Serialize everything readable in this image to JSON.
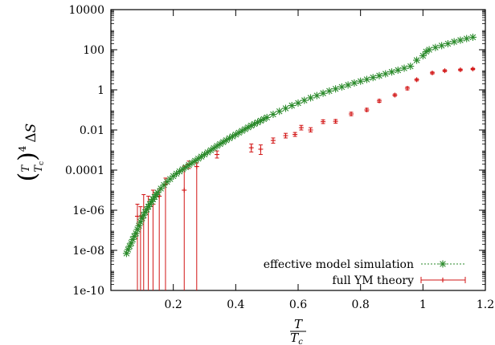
{
  "chart_data": {
    "type": "scatter",
    "xlabel": "T/Tc",
    "ylabel": "(T/Tc)^4 ΔS",
    "x_axis": {
      "min": 0.0,
      "max": 1.2,
      "ticks": [
        0.2,
        0.4,
        0.6,
        0.8,
        1.0,
        1.2
      ],
      "tick_labels": [
        "0.2",
        "0.4",
        "0.6",
        "0.8",
        "1",
        "1.2"
      ]
    },
    "y_axis": {
      "scale": "log",
      "min": 1e-10,
      "max": 10000,
      "ticks": [
        1e-10,
        1e-08,
        1e-06,
        0.0001,
        0.01,
        1,
        100,
        10000
      ],
      "tick_labels": [
        "1e-10",
        "1e-08",
        "1e-06",
        "0.0001",
        "0.01",
        "1",
        "100",
        "10000"
      ]
    },
    "legend_position": "bottom-right",
    "series": [
      {
        "name": "effective model simulation",
        "color": "#2a8a2a",
        "marker": "asterisk",
        "line": "dotted",
        "points": [
          [
            0.05,
            7e-09
          ],
          [
            0.055,
            1.1e-08
          ],
          [
            0.06,
            1.6e-08
          ],
          [
            0.065,
            2.3e-08
          ],
          [
            0.07,
            3.5e-08
          ],
          [
            0.075,
            5e-08
          ],
          [
            0.08,
            7e-08
          ],
          [
            0.085,
            1.1e-07
          ],
          [
            0.09,
            1.7e-07
          ],
          [
            0.095,
            2.6e-07
          ],
          [
            0.1,
            4e-07
          ],
          [
            0.105,
            5.7e-07
          ],
          [
            0.11,
            8e-07
          ],
          [
            0.115,
            1.1e-06
          ],
          [
            0.12,
            1.5e-06
          ],
          [
            0.125,
            2e-06
          ],
          [
            0.13,
            2.7e-06
          ],
          [
            0.135,
            3.5e-06
          ],
          [
            0.14,
            4.6e-06
          ],
          [
            0.145,
            6e-06
          ],
          [
            0.15,
            7.6e-06
          ],
          [
            0.16,
            1.2e-05
          ],
          [
            0.17,
            1.8e-05
          ],
          [
            0.18,
            2.6e-05
          ],
          [
            0.19,
            3.6e-05
          ],
          [
            0.2,
            5e-05
          ],
          [
            0.21,
            6.6e-05
          ],
          [
            0.22,
            8.6e-05
          ],
          [
            0.23,
            0.00011
          ],
          [
            0.24,
            0.00014
          ],
          [
            0.25,
            0.00018
          ],
          [
            0.26,
            0.00023
          ],
          [
            0.27,
            0.00029
          ],
          [
            0.28,
            0.00037
          ],
          [
            0.29,
            0.00047
          ],
          [
            0.3,
            0.0006
          ],
          [
            0.31,
            0.00077
          ],
          [
            0.32,
            0.00098
          ],
          [
            0.33,
            0.00125
          ],
          [
            0.34,
            0.0016
          ],
          [
            0.35,
            0.002
          ],
          [
            0.36,
            0.0025
          ],
          [
            0.37,
            0.0031
          ],
          [
            0.38,
            0.0039
          ],
          [
            0.39,
            0.0048
          ],
          [
            0.4,
            0.0059
          ],
          [
            0.41,
            0.0073
          ],
          [
            0.42,
            0.009
          ],
          [
            0.43,
            0.011
          ],
          [
            0.44,
            0.0135
          ],
          [
            0.45,
            0.0165
          ],
          [
            0.46,
            0.02
          ],
          [
            0.47,
            0.024
          ],
          [
            0.48,
            0.029
          ],
          [
            0.49,
            0.035
          ],
          [
            0.5,
            0.042
          ],
          [
            0.52,
            0.06
          ],
          [
            0.54,
            0.085
          ],
          [
            0.56,
            0.12
          ],
          [
            0.58,
            0.165
          ],
          [
            0.6,
            0.22
          ],
          [
            0.62,
            0.3
          ],
          [
            0.64,
            0.4
          ],
          [
            0.66,
            0.52
          ],
          [
            0.68,
            0.68
          ],
          [
            0.7,
            0.88
          ],
          [
            0.72,
            1.12
          ],
          [
            0.74,
            1.4
          ],
          [
            0.76,
            1.75
          ],
          [
            0.78,
            2.2
          ],
          [
            0.8,
            2.7
          ],
          [
            0.82,
            3.3
          ],
          [
            0.84,
            4.1
          ],
          [
            0.86,
            5.1
          ],
          [
            0.88,
            6.3
          ],
          [
            0.9,
            7.8
          ],
          [
            0.92,
            9.6
          ],
          [
            0.94,
            12
          ],
          [
            0.96,
            15
          ],
          [
            0.98,
            30
          ],
          [
            1.0,
            50
          ],
          [
            1.01,
            80
          ],
          [
            1.02,
            100
          ],
          [
            1.04,
            130
          ],
          [
            1.06,
            160
          ],
          [
            1.08,
            200
          ],
          [
            1.1,
            250
          ],
          [
            1.12,
            300
          ],
          [
            1.14,
            360
          ],
          [
            1.16,
            420
          ]
        ]
      },
      {
        "name": "full YM theory",
        "color": "#d21414",
        "marker": "plus",
        "line": "errorbars",
        "points": [
          [
            0.085,
            5e-07,
            1e-10,
            2e-06
          ],
          [
            0.095,
            5e-07,
            1e-10,
            1.5e-06
          ],
          [
            0.105,
            4e-07,
            1e-10,
            6e-06
          ],
          [
            0.12,
            1.5e-06,
            1e-10,
            5e-06
          ],
          [
            0.135,
            2e-06,
            1e-10,
            1e-05
          ],
          [
            0.155,
            5e-06,
            1e-10,
            1.2e-05
          ],
          [
            0.175,
            2e-05,
            1e-10,
            4e-05
          ],
          [
            0.235,
            1e-05,
            1e-10,
            0.00016
          ],
          [
            0.25,
            0.0002,
            0.00012,
            0.00028
          ],
          [
            0.275,
            0.00015,
            1e-10,
            0.00023
          ],
          [
            0.34,
            0.0006,
            0.0004,
            0.0009
          ],
          [
            0.45,
            0.0013,
            0.0008,
            0.002
          ],
          [
            0.48,
            0.0011,
            0.0006,
            0.0018
          ],
          [
            0.52,
            0.003,
            0.0022,
            0.004
          ],
          [
            0.56,
            0.0052,
            0.004,
            0.0068
          ],
          [
            0.59,
            0.006,
            0.0048,
            0.0075
          ],
          [
            0.61,
            0.013,
            0.01,
            0.017
          ],
          [
            0.64,
            0.01,
            0.008,
            0.013
          ],
          [
            0.68,
            0.026,
            0.021,
            0.032
          ],
          [
            0.72,
            0.027,
            0.022,
            0.033
          ],
          [
            0.77,
            0.063,
            0.052,
            0.076
          ],
          [
            0.82,
            0.1,
            0.085,
            0.12
          ],
          [
            0.86,
            0.28,
            0.24,
            0.33
          ],
          [
            0.91,
            0.55,
            0.48,
            0.63
          ],
          [
            0.95,
            1.2,
            1.0,
            1.4
          ],
          [
            0.98,
            3.2,
            2.8,
            3.6
          ],
          [
            1.03,
            7,
            6.2,
            7.8
          ],
          [
            1.07,
            9,
            8.1,
            10
          ],
          [
            1.12,
            10,
            9,
            11
          ],
          [
            1.16,
            11,
            10,
            12
          ]
        ]
      }
    ]
  }
}
